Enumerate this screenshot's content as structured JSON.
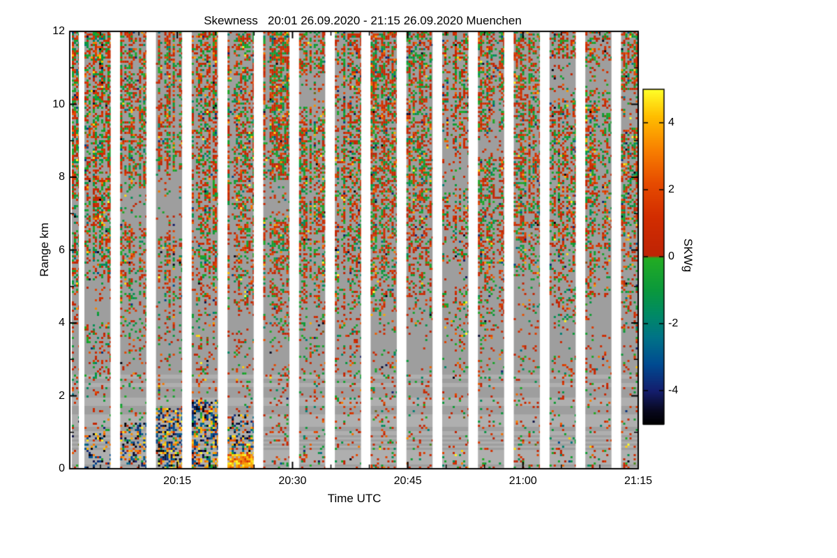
{
  "page": {
    "background": "#ffffff"
  },
  "chart_data": {
    "type": "heatmap",
    "title": "Skewness   20:01 26.09.2020 - 21:15 26.09.2020 Muenchen",
    "xlabel": "Time UTC",
    "ylabel": "Range km",
    "time_start": "20:01",
    "time_end": "21:15",
    "date": "26.09.2020",
    "station": "Muenchen",
    "x_ticks": [
      {
        "label": "20:15",
        "t": 14
      },
      {
        "label": "20:30",
        "t": 29
      },
      {
        "label": "20:45",
        "t": 44
      },
      {
        "label": "21:00",
        "t": 59
      },
      {
        "label": "21:15",
        "t": 74
      }
    ],
    "x_total_minutes": 74,
    "x_minor_step": 5,
    "x_minor_start": 4,
    "y_range": [
      0,
      12
    ],
    "y_ticks": [
      0,
      2,
      4,
      6,
      8,
      10,
      12
    ],
    "y_minor_step": 1,
    "grid": false,
    "colorbar": {
      "label": "SKWg",
      "range": [
        -5,
        5
      ],
      "ticks": [
        4,
        2,
        0,
        -2,
        -4
      ],
      "stops": [
        [
          -5.0,
          0,
          0,
          0
        ],
        [
          -4.6,
          8,
          8,
          30
        ],
        [
          -4.0,
          20,
          30,
          110
        ],
        [
          -3.2,
          0,
          75,
          145
        ],
        [
          -2.4,
          0,
          115,
          135
        ],
        [
          -1.7,
          0,
          138,
          100
        ],
        [
          -1.0,
          10,
          152,
          60
        ],
        [
          -0.03,
          35,
          172,
          35
        ],
        [
          0.03,
          190,
          35,
          5
        ],
        [
          1.2,
          210,
          45,
          0
        ],
        [
          2.2,
          230,
          75,
          0
        ],
        [
          3.2,
          248,
          128,
          0
        ],
        [
          4.2,
          255,
          190,
          0
        ],
        [
          5.0,
          255,
          255,
          40
        ]
      ]
    },
    "nodata_color": "#9e9e9e",
    "gap_color": "#ffffff",
    "stripes": {
      "lead_start": 0.0037,
      "lead_end": 0.016,
      "first": 0.0258,
      "cycle": 0.06294,
      "width": 0.046,
      "count": 16
    },
    "noise": {
      "seed": 1337,
      "cell": 3,
      "extreme_prob": 0.055,
      "mean": 0.35,
      "spread": 1.1,
      "density_profile": [
        [
          0,
          0.3
        ],
        [
          0.25,
          0.12
        ],
        [
          1,
          0.1
        ],
        [
          2,
          0.12
        ],
        [
          3,
          0.16
        ],
        [
          4,
          0.22
        ],
        [
          5,
          0.32
        ],
        [
          6,
          0.45
        ],
        [
          7,
          0.52
        ],
        [
          9,
          0.55
        ],
        [
          12,
          0.56
        ]
      ],
      "hotspots": [
        {
          "stripe": 1,
          "hmax": 1.0,
          "density": 0.3,
          "mode": "dark"
        },
        {
          "stripe": 2,
          "hmax": 1.3,
          "density": 0.4,
          "mode": "dark"
        },
        {
          "stripe": 3,
          "hmax": 1.7,
          "density": 0.55,
          "mode": "dark"
        },
        {
          "stripe": 4,
          "hmax": 1.9,
          "density": 0.6,
          "mode": "dark"
        },
        {
          "stripe": 5,
          "hmax": 1.5,
          "density": 0.5,
          "mode": "dark"
        },
        {
          "stripe": 5,
          "hmax": 0.45,
          "density": 0.9,
          "mode": "bright"
        }
      ]
    }
  }
}
